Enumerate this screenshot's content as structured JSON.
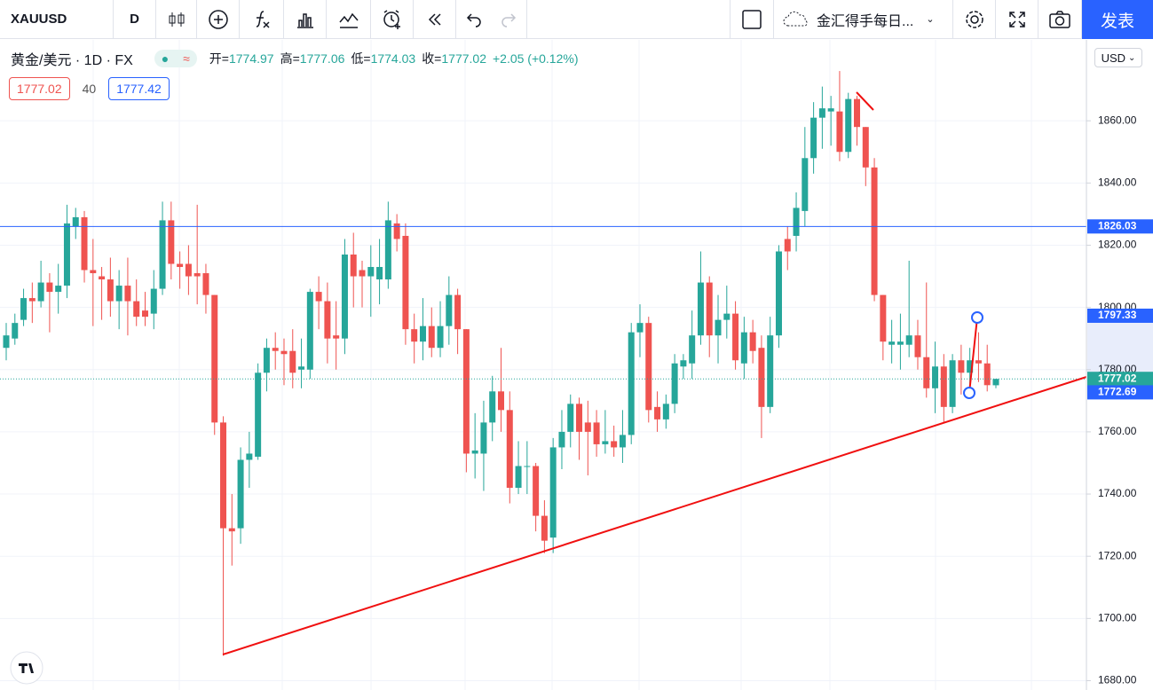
{
  "toolbar": {
    "symbol": "XAUUSD",
    "interval": "D",
    "layout_name": "金汇得手每日...",
    "publish": "发表"
  },
  "legend": {
    "title": "黄金/美元 · 1D · FX",
    "ohlc": [
      {
        "key": "开=",
        "value": "1774.97"
      },
      {
        "key": "高=",
        "value": "1777.06"
      },
      {
        "key": "低=",
        "value": "1774.03"
      },
      {
        "key": "收=",
        "value": "1777.02"
      }
    ],
    "change": "+2.05 (+0.12%)",
    "bid": "1777.02",
    "spread": "40",
    "ask": "1777.42"
  },
  "currency": "USD",
  "chart_data": {
    "type": "candlestick",
    "up_color": "#26a69a",
    "down_color": "#ef5350",
    "open": [
      1787,
      1790,
      1796,
      1803,
      1802,
      1808,
      1805,
      1807,
      1826,
      1829,
      1812,
      1810,
      1809,
      1802,
      1807,
      1802,
      1799,
      1798,
      1806,
      1828,
      1814,
      1814,
      1811,
      1811,
      1804,
      1763,
      1729,
      1729,
      1751,
      1752,
      1779,
      1787,
      1786,
      1786,
      1780,
      1780,
      1805,
      1802,
      1791,
      1790,
      1817,
      1812,
      1810,
      1809,
      1809,
      1827,
      1823,
      1793,
      1789,
      1794,
      1787,
      1794,
      1804,
      1793,
      1753,
      1753,
      1763,
      1773,
      1767,
      1742,
      1749,
      1749,
      1733,
      1726,
      1755,
      1760,
      1769,
      1763,
      1763,
      1756,
      1757,
      1755,
      1759,
      1792,
      1795,
      1768,
      1764,
      1769,
      1781,
      1782,
      1791,
      1808,
      1791,
      1796,
      1798,
      1782,
      1792,
      1787,
      1768,
      1791,
      1822,
      1823,
      1831,
      1848,
      1861,
      1863,
      1863,
      1850,
      1867,
      1858,
      1845,
      1804,
      1788,
      1788,
      1788,
      1791,
      1784,
      1774,
      1781,
      1768,
      1783,
      1779,
      1783,
      1782,
      1774.97
    ],
    "high": [
      1795,
      1798,
      1806,
      1808,
      1815,
      1811,
      1814,
      1833,
      1832,
      1831,
      1822,
      1813,
      1816,
      1812,
      1816,
      1809,
      1805,
      1812,
      1834,
      1834,
      1818,
      1820,
      1833,
      1814,
      1804,
      1765,
      1740,
      1755,
      1760,
      1782,
      1790,
      1792,
      1790,
      1793,
      1790,
      1806,
      1810,
      1808,
      1802,
      1822,
      1824,
      1815,
      1820,
      1822,
      1834,
      1830,
      1827,
      1798,
      1803,
      1800,
      1802,
      1810,
      1806,
      1793,
      1766,
      1770,
      1778,
      1787,
      1773,
      1757,
      1757,
      1750,
      1738,
      1758,
      1767,
      1772,
      1771,
      1770,
      1767,
      1767,
      1762,
      1767,
      1795,
      1801,
      1797,
      1773,
      1772,
      1785,
      1785,
      1799,
      1818,
      1810,
      1804,
      1807,
      1802,
      1797,
      1796,
      1791,
      1797,
      1820,
      1826,
      1837,
      1858,
      1866,
      1871,
      1868,
      1876,
      1869,
      1868,
      1858,
      1848,
      1804,
      1796,
      1798,
      1815,
      1796,
      1808,
      1789,
      1785,
      1785,
      1788,
      1787,
      1792,
      1788,
      1777.06
    ],
    "low": [
      1783,
      1788,
      1794,
      1795,
      1800,
      1792,
      1798,
      1803,
      1822,
      1808,
      1794,
      1796,
      1797,
      1793,
      1791,
      1794,
      1794,
      1793,
      1804,
      1809,
      1806,
      1804,
      1801,
      1798,
      1759,
      1688,
      1717,
      1724,
      1742,
      1751,
      1773,
      1780,
      1775,
      1774,
      1774,
      1777,
      1793,
      1782,
      1780,
      1785,
      1800,
      1800,
      1797,
      1801,
      1806,
      1818,
      1788,
      1782,
      1783,
      1784,
      1784,
      1788,
      1785,
      1747,
      1745,
      1741,
      1757,
      1760,
      1737,
      1740,
      1740,
      1728,
      1721,
      1721,
      1748,
      1755,
      1751,
      1746,
      1752,
      1753,
      1752,
      1750,
      1756,
      1784,
      1763,
      1760,
      1761,
      1766,
      1777,
      1777,
      1788,
      1784,
      1782,
      1790,
      1780,
      1777,
      1782,
      1758,
      1766,
      1787,
      1812,
      1818,
      1826,
      1843,
      1851,
      1852,
      1847,
      1848,
      1852,
      1839,
      1802,
      1783,
      1782,
      1780,
      1784,
      1780,
      1771,
      1766,
      1763,
      1766,
      1772,
      1774,
      1776,
      1773,
      1774.03
    ],
    "close": [
      1791,
      1795,
      1803,
      1802,
      1808,
      1805,
      1807,
      1827,
      1829,
      1812,
      1811,
      1809,
      1802,
      1807,
      1802,
      1797,
      1797,
      1806,
      1828,
      1814,
      1813,
      1810,
      1810,
      1804,
      1763,
      1729,
      1728,
      1751,
      1753,
      1779,
      1787,
      1786,
      1785,
      1779,
      1781,
      1805,
      1802,
      1790,
      1790,
      1817,
      1810,
      1810,
      1813,
      1813,
      1828,
      1822,
      1793,
      1789,
      1794,
      1787,
      1794,
      1804,
      1793,
      1753,
      1754,
      1763,
      1773,
      1767,
      1742,
      1749,
      1749,
      1733,
      1725,
      1755,
      1760,
      1769,
      1760,
      1760,
      1756,
      1757,
      1755,
      1759,
      1792,
      1795,
      1767,
      1764,
      1769,
      1782,
      1783,
      1791,
      1808,
      1791,
      1796,
      1798,
      1783,
      1792,
      1786,
      1768,
      1791,
      1818,
      1818,
      1832,
      1848,
      1861,
      1864,
      1864,
      1850,
      1867,
      1858,
      1845,
      1804,
      1789,
      1789,
      1789,
      1791,
      1784,
      1774,
      1781,
      1768,
      1783,
      1779,
      1783,
      1782,
      1775,
      1777.02
    ],
    "ylim": [
      1677,
      1886
    ],
    "yticks": [
      {
        "value": 1680,
        "label": "1680.00"
      },
      {
        "value": 1700,
        "label": "1700.00"
      },
      {
        "value": 1720,
        "label": "1720.00"
      },
      {
        "value": 1740,
        "label": "1740.00"
      },
      {
        "value": 1760,
        "label": "1760.00"
      },
      {
        "value": 1780,
        "label": "1780.00"
      },
      {
        "value": 1800,
        "label": "1800.00"
      },
      {
        "value": 1820,
        "label": "1820.00"
      },
      {
        "value": 1840,
        "label": "1840.00"
      },
      {
        "value": 1860,
        "label": "1860.00"
      }
    ],
    "grid": true,
    "markers": [
      {
        "value": 1826.03,
        "color": "#2962ff",
        "line": "solid"
      },
      {
        "value": 1797.33,
        "color": "#2962ff"
      },
      {
        "value": 1777.02,
        "color": "#26a69a",
        "line": "dotted"
      },
      {
        "value": 1772.69,
        "color": "#2962ff"
      }
    ]
  }
}
